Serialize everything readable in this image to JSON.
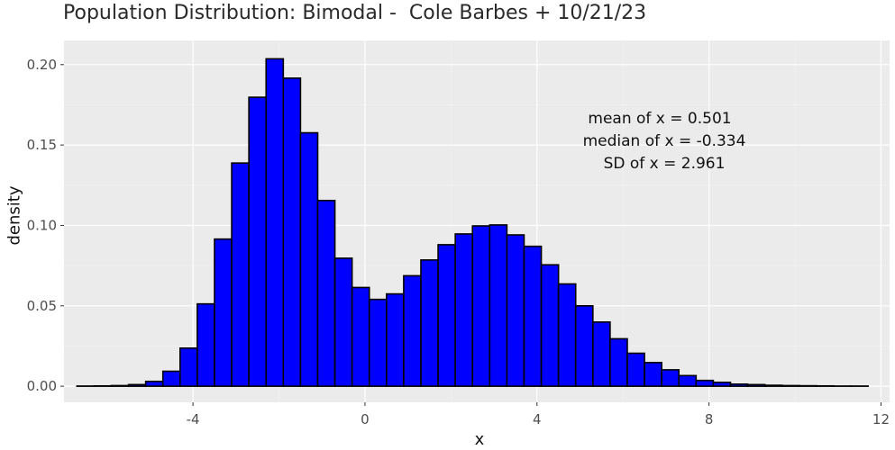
{
  "chart_data": {
    "type": "bar",
    "title": "Population Distribution: Bimodal -  Cole Barbes + 10/21/23",
    "xlabel": "x",
    "ylabel": "density",
    "xlim": [
      -7.0,
      12.2
    ],
    "ylim": [
      -0.01,
      0.215
    ],
    "x_ticks": [
      -4,
      0,
      4,
      8,
      12
    ],
    "y_ticks": [
      0.0,
      0.05,
      0.1,
      0.15,
      0.2
    ],
    "x_tick_labels": [
      "-4",
      "0",
      "4",
      "8",
      "12"
    ],
    "y_tick_labels": [
      "0.00",
      "0.05",
      "0.10",
      "0.15",
      "0.20"
    ],
    "grid": true,
    "bin_width": 0.4,
    "bin_start": -6.7,
    "values": [
      0.0001,
      0.0002,
      0.0004,
      0.001,
      0.003,
      0.0093,
      0.0237,
      0.0512,
      0.0915,
      0.1388,
      0.1797,
      0.2036,
      0.1916,
      0.1576,
      0.1155,
      0.0796,
      0.0614,
      0.054,
      0.0574,
      0.0687,
      0.0785,
      0.088,
      0.0947,
      0.0997,
      0.1003,
      0.0941,
      0.087,
      0.0755,
      0.0636,
      0.05,
      0.0399,
      0.0295,
      0.0205,
      0.0147,
      0.0102,
      0.0066,
      0.0036,
      0.0024,
      0.0013,
      0.001,
      0.0006,
      0.0004,
      0.0003,
      0.0002,
      0.0001,
      0.0001
    ],
    "bar_fill": "#0000ff",
    "bar_stroke": "#000000",
    "annotations": [
      "mean of x = 0.501",
      "median of x = -0.334",
      "SD of x = 2.961"
    ]
  },
  "colors": {
    "panel_bg": "#ebebeb",
    "grid_major": "#ffffff",
    "grid_minor": "#f3f3f3",
    "axis_text": "#4d4d4d"
  }
}
